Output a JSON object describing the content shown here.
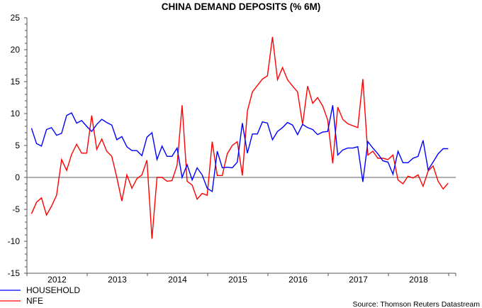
{
  "chart_data": {
    "type": "line",
    "title": "CHINA DEMAND DEPOSITS (% 6M)",
    "xlabel": "",
    "ylabel": "",
    "frequency": "monthly",
    "start": "2012-01",
    "end": "2018-12",
    "x_tick_labels": [
      "2012",
      "2013",
      "2014",
      "2015",
      "2016",
      "2017",
      "2018"
    ],
    "y_tick_labels": [
      "25",
      "20",
      "15",
      "10",
      "5",
      "0",
      "-5",
      "-10",
      "-15"
    ],
    "ylim": [
      -15,
      25
    ],
    "y_major_step": 5,
    "grid": false,
    "zero_line": true,
    "legend_placement": "bottom-left",
    "series": [
      {
        "name": "HOUSEHOLD",
        "color": "#0000ff",
        "values": [
          7.7,
          5.3,
          4.9,
          7.5,
          7.8,
          6.6,
          6.9,
          9.7,
          10.1,
          8.5,
          8.9,
          8.0,
          7.2,
          8.3,
          9.1,
          8.6,
          8.2,
          5.9,
          6.4,
          4.8,
          4.2,
          4.2,
          3.4,
          6.3,
          7.0,
          2.8,
          4.9,
          3.3,
          3.3,
          4.6,
          0.0,
          2.0,
          -0.4,
          1.5,
          0.4,
          -1.7,
          -2.2,
          4.1,
          1.5,
          1.6,
          1.5,
          2.4,
          8.5,
          3.8,
          6.8,
          6.8,
          8.7,
          8.5,
          5.9,
          7.2,
          7.8,
          8.6,
          8.2,
          6.7,
          8.3,
          7.8,
          7.5,
          6.7,
          7.1,
          7.2,
          11.3,
          3.5,
          4.3,
          4.6,
          4.6,
          4.8,
          -0.7,
          5.6,
          4.6,
          3.7,
          2.6,
          2.4,
          0.5,
          4.1,
          2.3,
          2.3,
          3.0,
          3.3,
          5.8,
          1.2,
          2.4,
          3.7,
          4.5,
          4.5
        ]
      },
      {
        "name": "NFE",
        "color": "#ff0000",
        "values": [
          -5.7,
          -3.9,
          -3.2,
          -5.9,
          -4.5,
          -2.8,
          2.8,
          1.1,
          3.6,
          5.2,
          3.8,
          3.8,
          9.7,
          4.4,
          6.0,
          4.1,
          3.3,
          0.0,
          -3.7,
          0.4,
          -1.7,
          -0.2,
          0.4,
          2.7,
          -9.6,
          0.0,
          0.0,
          -0.6,
          -0.5,
          1.9,
          11.3,
          -0.6,
          -1.2,
          -3.4,
          -2.5,
          -2.8,
          5.6,
          0.3,
          0.3,
          3.7,
          5.0,
          5.6,
          0.3,
          10.4,
          13.4,
          14.4,
          15.4,
          15.9,
          22.0,
          15.3,
          17.2,
          15.3,
          14.3,
          13.4,
          8.3,
          14.3,
          11.6,
          12.5,
          11.2,
          9.0,
          2.2,
          11.0,
          9.1,
          8.4,
          8.1,
          7.8,
          15.4,
          3.5,
          4.1,
          3.0,
          3.0,
          2.8,
          3.5,
          -0.4,
          -1.0,
          0.2,
          -0.1,
          0.4,
          -1.4,
          1.0,
          1.8,
          -0.6,
          -1.8,
          -0.9
        ]
      }
    ],
    "source": "Source: Thomson Reuters Datastream"
  }
}
